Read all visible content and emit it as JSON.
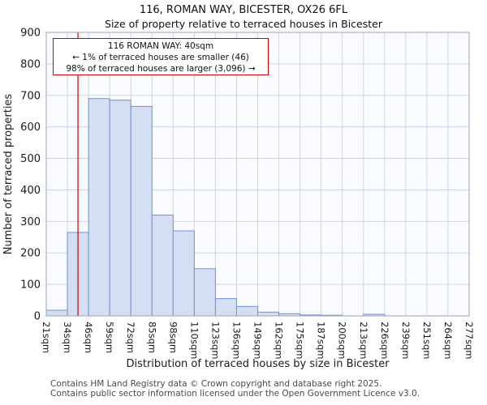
{
  "chart_data": {
    "type": "bar",
    "title": "116, ROMAN WAY, BICESTER, OX26 6FL",
    "subtitle": "Size of property relative to terraced houses in Bicester",
    "xlabel": "Distribution of terraced houses by size in Bicester",
    "ylabel": "Number of terraced properties",
    "ylim": [
      0,
      900
    ],
    "y_ticks": [
      0,
      100,
      200,
      300,
      400,
      500,
      600,
      700,
      800,
      900
    ],
    "x_tick_labels": [
      "21sqm",
      "34sqm",
      "46sqm",
      "59sqm",
      "72sqm",
      "85sqm",
      "98sqm",
      "110sqm",
      "123sqm",
      "136sqm",
      "149sqm",
      "162sqm",
      "175sqm",
      "187sqm",
      "200sqm",
      "213sqm",
      "226sqm",
      "239sqm",
      "251sqm",
      "264sqm",
      "277sqm"
    ],
    "bin_edges_sqm": [
      21,
      34,
      46,
      59,
      72,
      85,
      98,
      110,
      123,
      136,
      149,
      162,
      175,
      187,
      200,
      213,
      226,
      239,
      251,
      264,
      277
    ],
    "values": [
      18,
      265,
      690,
      685,
      665,
      320,
      270,
      150,
      55,
      30,
      12,
      7,
      3,
      2,
      0,
      5,
      0,
      0,
      0,
      0
    ],
    "grid": true,
    "legend": "none",
    "marker": {
      "value_sqm": 40
    },
    "annotation": {
      "line1": "116 ROMAN WAY: 40sqm",
      "line2": "← 1% of terraced houses are smaller (46)",
      "line3": "98% of terraced houses are larger (3,096) →"
    },
    "colors": {
      "bar_fill": "#d4dff3",
      "bar_stroke": "#6d92d4",
      "grid": "#c9d5ea",
      "plot_bg": "#fafbfe",
      "axis": "#9aa5b5",
      "marker": "#cc0000",
      "text": "#1a1a1a"
    }
  },
  "footer": {
    "line1": "Contains HM Land Registry data © Crown copyright and database right 2025.",
    "line2": "Contains public sector information licensed under the Open Government Licence v3.0."
  }
}
